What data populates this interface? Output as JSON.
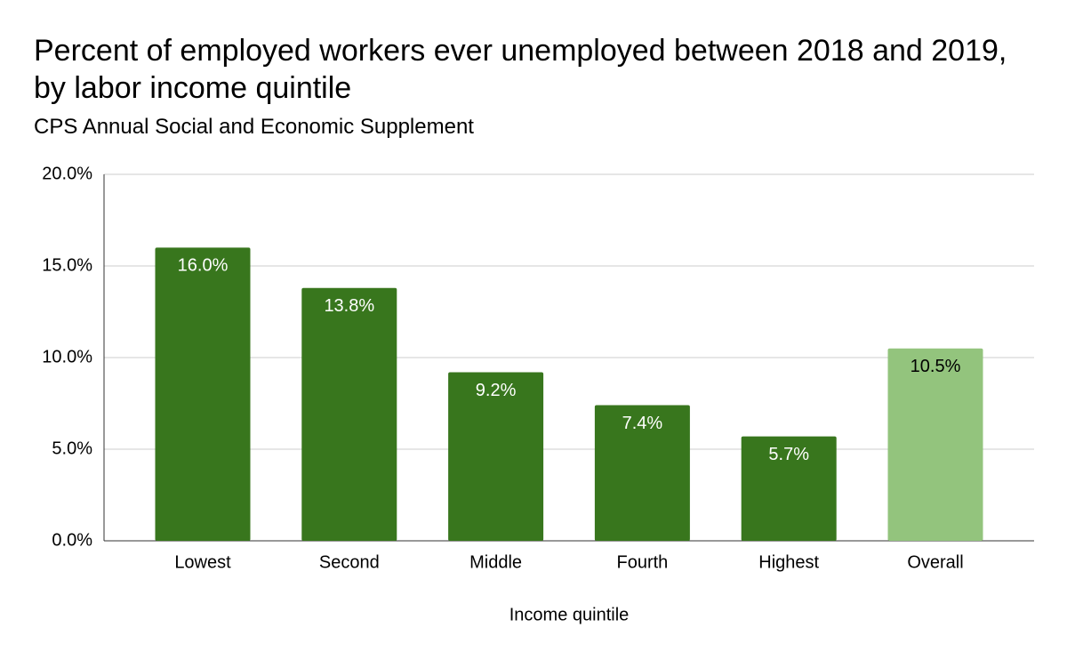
{
  "chart_data": {
    "type": "bar",
    "title": "Percent of employed workers ever unemployed between 2018 and 2019, by labor income quintile",
    "subtitle": "CPS Annual Social and Economic Supplement",
    "x_label": "Income quintile",
    "categories": [
      "Lowest",
      "Second",
      "Middle",
      "Fourth",
      "Highest",
      "Overall"
    ],
    "values": [
      16.0,
      13.8,
      9.2,
      7.4,
      5.7,
      10.5
    ],
    "value_labels": [
      "16.0%",
      "13.8%",
      "9.2%",
      "7.4%",
      "5.7%",
      "10.5%"
    ],
    "colors": [
      "#38761d",
      "#38761d",
      "#38761d",
      "#38761d",
      "#38761d",
      "#93c47d"
    ],
    "ylim": [
      0,
      20
    ],
    "yticks": [
      {
        "value": 0,
        "label": "0.0%"
      },
      {
        "value": 5,
        "label": "5.0%"
      },
      {
        "value": 10,
        "label": "10.0%"
      },
      {
        "value": 15,
        "label": "15.0%"
      },
      {
        "value": 20,
        "label": "20.0%"
      }
    ],
    "grid": true
  }
}
